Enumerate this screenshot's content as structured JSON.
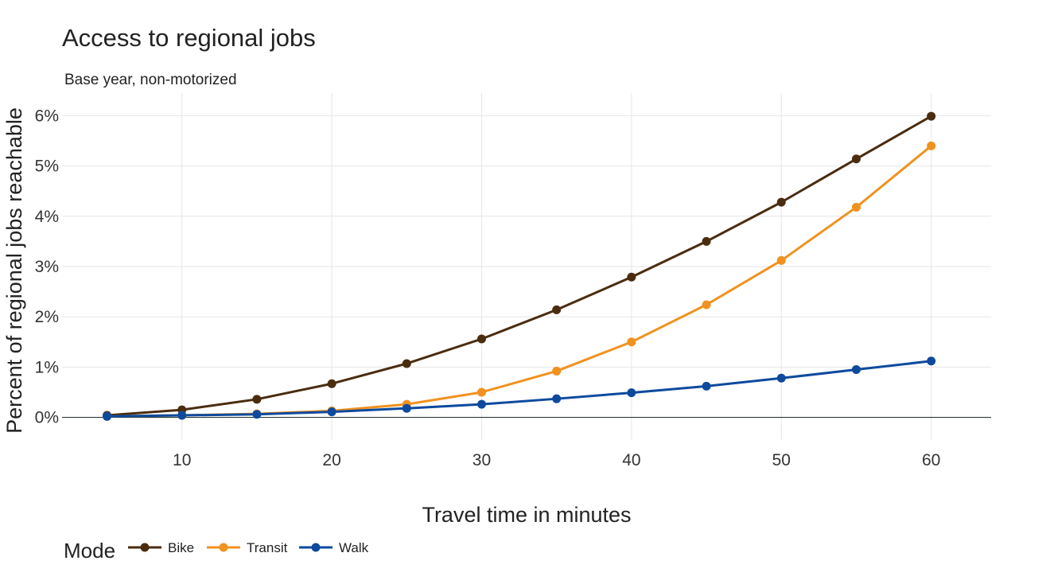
{
  "chart_data": {
    "type": "line",
    "title": "Access to regional jobs",
    "subtitle": "Base year, non-motorized",
    "xlabel": "Travel time in minutes",
    "ylabel": "Percent of regional jobs reachable",
    "x": [
      5,
      10,
      15,
      20,
      25,
      30,
      35,
      40,
      45,
      50,
      55,
      60
    ],
    "xlim": [
      2,
      64
    ],
    "ylim": [
      -0.45,
      6.45
    ],
    "x_ticks": [
      10,
      20,
      30,
      40,
      50,
      60
    ],
    "y_ticks": [
      0,
      1,
      2,
      3,
      4,
      5,
      6
    ],
    "y_tick_labels": [
      "0%",
      "1%",
      "2%",
      "3%",
      "4%",
      "5%",
      "6%"
    ],
    "grid": true,
    "legend": {
      "title": "Mode",
      "placement": "bottom-left"
    },
    "series": [
      {
        "name": "Bike",
        "color": "#4a2c0f",
        "values": [
          0.04,
          0.15,
          0.36,
          0.67,
          1.07,
          1.56,
          2.14,
          2.79,
          3.5,
          4.28,
          5.14,
          5.99
        ]
      },
      {
        "name": "Transit",
        "color": "#f0921f",
        "values": [
          0.02,
          0.04,
          0.07,
          0.13,
          0.26,
          0.5,
          0.92,
          1.5,
          2.24,
          3.12,
          4.18,
          5.4
        ]
      },
      {
        "name": "Walk",
        "color": "#0d4a9e",
        "values": [
          0.02,
          0.04,
          0.06,
          0.11,
          0.18,
          0.26,
          0.37,
          0.49,
          0.62,
          0.78,
          0.95,
          1.12
        ]
      }
    ]
  }
}
